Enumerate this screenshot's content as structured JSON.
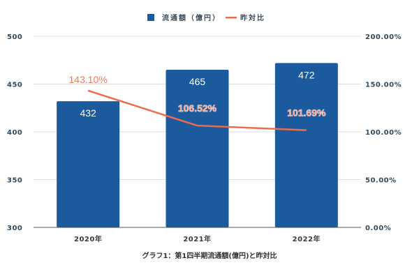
{
  "chart_data": {
    "type": "bar",
    "title": "",
    "caption": "グラフ1：第1四半期流通額(億円)と昨対比",
    "categories": [
      "2020年",
      "2021年",
      "2022年"
    ],
    "series": [
      {
        "name": "流通額（億円）",
        "type": "bar",
        "axis": "left",
        "color": "#1c5a9e",
        "values": [
          432,
          465,
          472
        ],
        "labels": [
          "432",
          "465",
          "472"
        ]
      },
      {
        "name": "昨対比",
        "type": "line",
        "axis": "right",
        "color": "#ee6c4d",
        "values": [
          143.1,
          106.52,
          101.69
        ],
        "labels": [
          "143.10%",
          "106.52%",
          "101.69%"
        ]
      }
    ],
    "y_left": {
      "range": [
        300,
        500
      ],
      "ticks": [
        300,
        350,
        400,
        450,
        500
      ],
      "tick_labels": [
        "300",
        "350",
        "400",
        "450",
        "500"
      ]
    },
    "y_right": {
      "range": [
        0,
        200
      ],
      "ticks": [
        0,
        50,
        100,
        150,
        200
      ],
      "tick_labels": [
        "0.00%",
        "50.00%",
        "100.00%",
        "150.00%",
        "200.00%"
      ]
    },
    "xlabel": "",
    "ylabel": "",
    "grid": true,
    "legend_position": "top-center"
  }
}
